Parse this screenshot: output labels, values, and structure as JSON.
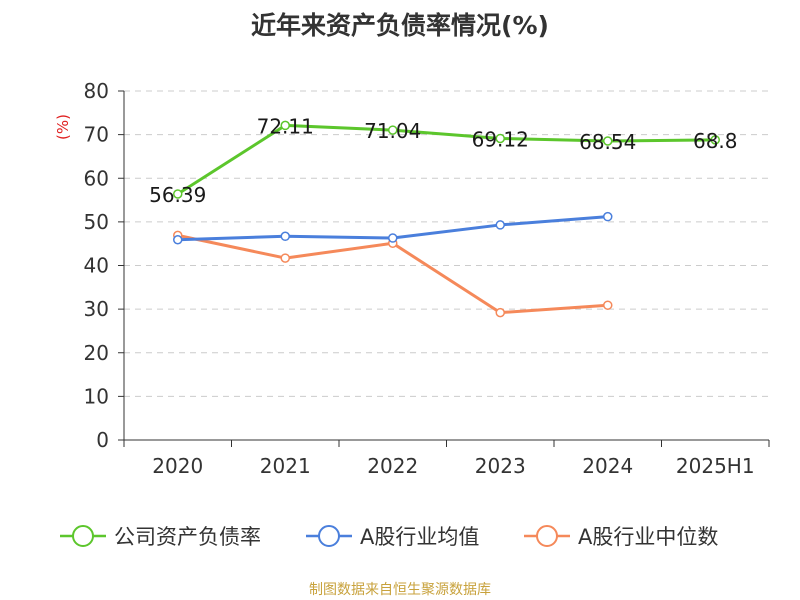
{
  "title": "近年来资产负债率情况(%)",
  "source": "制图数据来自恒生聚源数据库",
  "colors": {
    "company": "#5cc62c",
    "industry_avg": "#4a7fdc",
    "industry_median": "#f5895a",
    "axis": "#333333",
    "grid": "#cccccc",
    "unit": "#e02020"
  },
  "chart_data": {
    "type": "line",
    "title": "近年来资产负债率情况(%)",
    "ylabel": "(%)",
    "categories": [
      "2020",
      "2021",
      "2022",
      "2023",
      "2024",
      "2025H1"
    ],
    "y_ticks": [
      "0",
      "10",
      "20",
      "30",
      "40",
      "50",
      "60",
      "70",
      "80"
    ],
    "ylim": [
      0,
      80
    ],
    "grid": true,
    "legend_position": "bottom",
    "series": [
      {
        "name": "公司资产负债率",
        "values": [
          56.39,
          72.11,
          71.04,
          69.12,
          68.54,
          68.8
        ],
        "labels": [
          "56.39",
          "72.11",
          "71.04",
          "69.12",
          "68.54",
          "68.8"
        ]
      },
      {
        "name": "A股行业均值",
        "values": [
          45.9,
          46.7,
          46.3,
          49.3,
          51.2,
          null
        ]
      },
      {
        "name": "A股行业中位数",
        "values": [
          46.9,
          41.7,
          45.1,
          29.2,
          30.9,
          null
        ]
      }
    ]
  }
}
